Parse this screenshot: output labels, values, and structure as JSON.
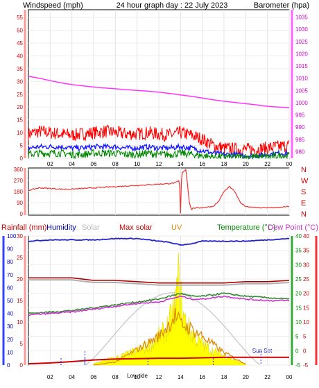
{
  "header": {
    "left_title": "Windspeed (mph)",
    "center_title": "24 hour graph day : 22 July 2023",
    "right_title": "Barometer (hpa)"
  },
  "colors": {
    "wind_red": "#ff0000",
    "wind_blue": "#1a1aff",
    "wind_green": "#008800",
    "barometer": "#ff33ff",
    "direction": "#ee3333",
    "humidity": "#2222cc",
    "max_solar": "#c0c0c0",
    "temperature": "#338833",
    "dew_point": "#cc33cc",
    "rain": "#cc0000",
    "solar_fill": "#ffff00",
    "uv": "#dd8800",
    "axis_left_blue": "#0000cc",
    "axis_right_red": "#cc0000"
  },
  "time_axis": {
    "ticks": [
      "02",
      "04",
      "06",
      "08",
      "10",
      "12",
      "14",
      "16",
      "18",
      "20",
      "22",
      "00"
    ]
  },
  "panel1": {
    "wind_ticks": [
      0,
      5,
      10,
      15,
      20,
      25,
      30,
      35,
      40,
      45,
      50,
      55
    ],
    "baro_ticks": [
      980,
      985,
      990,
      995,
      1000,
      1005,
      1010,
      1015,
      1020,
      1025,
      1030,
      1035
    ],
    "wind_ylim": [
      0,
      58
    ],
    "baro_ylim": [
      977.3,
      1038
    ],
    "barometer": {
      "x": [
        0,
        1,
        2,
        3,
        4,
        5,
        6,
        7,
        8,
        9,
        10,
        11,
        12,
        13,
        14,
        15,
        16,
        17,
        18,
        19,
        20,
        21,
        22,
        23,
        24
      ],
      "values": [
        1010.8,
        1010.0,
        1009.0,
        1008.1,
        1007.4,
        1006.9,
        1006.4,
        1006.0,
        1005.7,
        1005.3,
        1005.0,
        1004.7,
        1004.3,
        1003.8,
        1003.2,
        1002.6,
        1001.9,
        1001.2,
        1000.6,
        1000.1,
        999.6,
        999.1,
        998.5,
        998.2,
        998.0
      ]
    },
    "wind_gust": {
      "x": [
        0,
        1,
        2,
        3,
        4,
        5,
        6,
        7,
        8,
        9,
        10,
        11,
        12,
        13,
        14,
        15,
        16,
        17,
        18,
        19,
        20,
        21,
        22,
        23,
        24
      ],
      "values": [
        9.5,
        10.5,
        10,
        9.5,
        9,
        9.5,
        10,
        10.5,
        10,
        9.5,
        9.5,
        10,
        9.5,
        9,
        10,
        9,
        7.5,
        5,
        4,
        3.5,
        3.5,
        3.5,
        4,
        4.5,
        5
      ]
    },
    "wind_average": {
      "x": [
        0,
        1,
        2,
        3,
        4,
        5,
        6,
        7,
        8,
        9,
        10,
        11,
        12,
        13,
        14,
        15,
        16,
        17,
        18,
        19,
        20,
        21,
        22,
        23,
        24
      ],
      "values": [
        4,
        4.5,
        4.5,
        4.5,
        4,
        4,
        4.5,
        4.5,
        4.5,
        4,
        4,
        4.5,
        4,
        4,
        4.5,
        4,
        3,
        2,
        1.5,
        1.5,
        1,
        1,
        1.5,
        2,
        2
      ]
    },
    "wind_speed": {
      "x": [
        0,
        1,
        2,
        3,
        4,
        5,
        6,
        7,
        8,
        9,
        10,
        11,
        12,
        13,
        14,
        15,
        16,
        17,
        18,
        19,
        20,
        21,
        22,
        23,
        24
      ],
      "values": [
        1.5,
        2,
        2,
        2,
        1.5,
        1.5,
        2,
        2,
        2,
        1.5,
        1.5,
        2,
        1.5,
        1.5,
        2,
        1.5,
        1,
        0.5,
        0.5,
        0.5,
        0.5,
        0.5,
        0.5,
        1,
        1
      ]
    }
  },
  "panel2": {
    "deg_ticks": [
      0,
      90,
      180,
      270,
      360
    ],
    "compass_labels": [
      "N",
      "W",
      "S",
      "E",
      "N"
    ],
    "wind_direction": {
      "x": [
        0,
        1,
        2,
        3,
        4,
        5,
        6,
        7,
        8,
        9,
        10,
        11,
        12,
        13,
        13.5,
        13.9,
        14.0,
        14.1,
        14.5,
        14.8,
        15.0,
        15.1,
        16,
        17,
        17.5,
        18,
        18.5,
        19,
        19.5,
        20,
        21,
        22,
        23,
        24
      ],
      "values": [
        190,
        210,
        205,
        200,
        200,
        205,
        210,
        215,
        220,
        225,
        230,
        235,
        240,
        245,
        250,
        270,
        0,
        330,
        360,
        100,
        30,
        45,
        50,
        60,
        100,
        180,
        220,
        180,
        90,
        60,
        50,
        50,
        50,
        60
      ]
    }
  },
  "panel3": {
    "legend": {
      "rainfall": "Rainfall (mm)",
      "humidity": "Humidity",
      "solar": "Solar",
      "max_solar": "Max solar",
      "uv": "UV",
      "temperature": "Temperature (°C)",
      "dew_point": "Dew Point (°C)"
    },
    "humidity_ticks": [
      0,
      10,
      20,
      30,
      40,
      50,
      60,
      70,
      80,
      90,
      100
    ],
    "rain_ticks": [
      0,
      5,
      10,
      15,
      20,
      25,
      30
    ],
    "temp_ticks": [
      -5,
      0,
      5,
      10,
      15,
      20,
      25,
      30,
      35,
      40
    ],
    "annotations": {
      "low_tide": "Low tide",
      "sun_set": "Sun Set"
    },
    "humidity": {
      "x": [
        0,
        2,
        4,
        6,
        8,
        10,
        12,
        13,
        14,
        15,
        16,
        18,
        20,
        22,
        24
      ],
      "values": [
        96,
        97,
        97,
        97,
        98,
        98,
        96,
        95,
        93,
        94,
        96,
        96,
        96,
        97,
        98
      ]
    },
    "max_solar_pct": {
      "x": [
        0,
        4,
        5,
        6,
        8,
        10,
        12,
        13,
        14,
        15,
        16,
        18,
        20,
        22,
        24
      ],
      "values": [
        66,
        66,
        65,
        64,
        64,
        63,
        62,
        62,
        62,
        62,
        62,
        62,
        63,
        63,
        64
      ]
    },
    "temperature": {
      "x": [
        0,
        2,
        4,
        6,
        8,
        10,
        12,
        13,
        14,
        15,
        16,
        17,
        18,
        20,
        22,
        24
      ],
      "values": [
        13,
        13.5,
        14,
        15,
        16,
        17,
        18,
        19,
        20,
        19,
        19,
        19.5,
        20,
        19,
        18.5,
        18
      ]
    },
    "dew_point": {
      "x": [
        0,
        2,
        4,
        6,
        8,
        10,
        12,
        13,
        14,
        15,
        16,
        17,
        18,
        20,
        22,
        24
      ],
      "values": [
        12.5,
        13,
        13.5,
        14.5,
        15.5,
        16.5,
        17,
        18,
        19,
        18,
        18,
        18.5,
        19,
        18,
        17.5,
        17.5
      ]
    },
    "rain_total": {
      "x": [
        0,
        2,
        4,
        6,
        8,
        10,
        12,
        14,
        16,
        18,
        20,
        22,
        24
      ],
      "values": [
        0.3,
        0.5,
        0.8,
        1.2,
        1.4,
        1.5,
        1.6,
        1.6,
        1.7,
        1.8,
        1.8,
        1.8,
        1.8
      ]
    },
    "solar_pct": {
      "x": [
        6,
        7,
        8,
        9,
        10,
        11,
        11.5,
        12,
        12.5,
        13,
        13.5,
        13.8,
        14,
        14.3,
        14.8,
        15.5,
        16,
        17,
        18,
        19,
        20
      ],
      "values": [
        1,
        4,
        6,
        9,
        12,
        16,
        20,
        24,
        28,
        36,
        50,
        72,
        60,
        40,
        30,
        22,
        18,
        12,
        8,
        4,
        1
      ]
    },
    "uv": {
      "x": [
        6,
        8,
        10,
        12,
        13,
        13.5,
        14,
        15,
        16,
        18,
        20
      ],
      "values": [
        0,
        0.3,
        1.5,
        2.8,
        4,
        4.8,
        4,
        3.5,
        2.8,
        1.2,
        0.1
      ]
    },
    "sunrise_hour": 5.2,
    "sunset_hour": 21.4,
    "low_tide_hours": [
      3,
      5.2,
      11,
      17
    ]
  }
}
